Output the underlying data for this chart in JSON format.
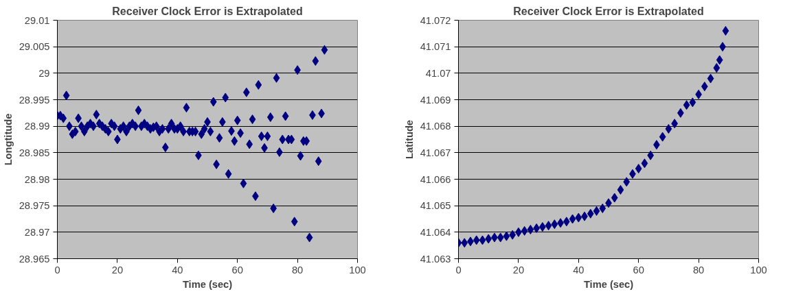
{
  "chart_data": [
    {
      "type": "scatter",
      "title": "Receiver Clock Error is Extrapolated",
      "xlabel": "Time (sec)",
      "ylabel": "Longtitude",
      "marker": "diamond",
      "grid": "y",
      "color": "#000080",
      "x": [
        0,
        1,
        2,
        3,
        4,
        5,
        6,
        7,
        8,
        9,
        10,
        11,
        12,
        13,
        14,
        15,
        16,
        17,
        18,
        19,
        20,
        21,
        22,
        23,
        24,
        25,
        26,
        27,
        28,
        29,
        30,
        31,
        32,
        33,
        34,
        35,
        36,
        37,
        38,
        39,
        40,
        41,
        42,
        43,
        44,
        45,
        46,
        47,
        48,
        49,
        50,
        51,
        52,
        53,
        54,
        55,
        56,
        57,
        58,
        59,
        60,
        61,
        62,
        63,
        64,
        65,
        66,
        67,
        68,
        69,
        70,
        71,
        72,
        73,
        74,
        75,
        76,
        77,
        78,
        79,
        80,
        81,
        82,
        83,
        84,
        85,
        86,
        87,
        88,
        89
      ],
      "values": [
        28.992,
        28.992,
        28.9915,
        28.9958,
        28.99,
        28.9885,
        28.989,
        28.9915,
        28.99,
        28.989,
        28.99,
        28.9905,
        28.99,
        28.9922,
        28.9905,
        28.99,
        28.9895,
        28.989,
        28.9905,
        28.99,
        28.9875,
        28.9895,
        28.99,
        28.989,
        28.99,
        28.9905,
        28.99,
        28.993,
        28.99,
        28.9905,
        28.99,
        28.9895,
        28.9898,
        28.99,
        28.989,
        28.9895,
        28.986,
        28.9895,
        28.9905,
        28.9895,
        28.9895,
        28.99,
        28.989,
        28.9935,
        28.989,
        28.989,
        28.989,
        28.9845,
        28.9885,
        28.9895,
        28.9908,
        28.989,
        28.9946,
        28.9828,
        28.9878,
        28.9908,
        28.9954,
        28.981,
        28.9891,
        28.9872,
        28.9911,
        28.9887,
        28.9792,
        28.9964,
        28.9866,
        28.9913,
        28.9768,
        28.9978,
        28.9881,
        28.9859,
        28.9881,
        28.9917,
        28.9745,
        28.9991,
        28.9851,
        28.9875,
        28.9919,
        28.9875,
        28.9875,
        28.972,
        29.0006,
        28.9844,
        28.9872,
        28.9872,
        28.969,
        28.9921,
        29.0023,
        28.9834,
        28.9924,
        29.0044
      ],
      "xlim": [
        0,
        100
      ],
      "xticks": [
        0,
        20,
        40,
        60,
        80,
        100
      ],
      "ylim": [
        28.965,
        29.01
      ],
      "yticks": [
        28.965,
        28.97,
        28.975,
        28.98,
        28.985,
        28.99,
        28.995,
        29,
        29.005,
        29.01
      ]
    },
    {
      "type": "scatter",
      "title": "Receiver Clock Error is Extrapolated",
      "xlabel": "Time (sec)",
      "ylabel": "Latitude",
      "marker": "diamond",
      "grid": "y",
      "color": "#000080",
      "x": [
        0,
        2,
        4,
        6,
        8,
        10,
        12,
        14,
        16,
        18,
        20,
        22,
        24,
        26,
        28,
        30,
        32,
        34,
        36,
        38,
        40,
        42,
        44,
        46,
        48,
        50,
        52,
        54,
        56,
        58,
        60,
        62,
        64,
        66,
        68,
        70,
        72,
        74,
        76,
        78,
        80,
        82,
        84,
        86,
        87,
        88,
        89
      ],
      "values": [
        41.0636,
        41.0636,
        41.06365,
        41.0637,
        41.0637,
        41.06375,
        41.0638,
        41.0638,
        41.06385,
        41.0639,
        41.064,
        41.06405,
        41.0641,
        41.06415,
        41.0642,
        41.06425,
        41.0643,
        41.06435,
        41.0644,
        41.0645,
        41.06455,
        41.0646,
        41.0647,
        41.0648,
        41.0649,
        41.0651,
        41.0653,
        41.0656,
        41.0659,
        41.0662,
        41.0664,
        41.0666,
        41.0669,
        41.0673,
        41.0676,
        41.0679,
        41.0681,
        41.0685,
        41.0688,
        41.0689,
        41.0692,
        41.0695,
        41.0698,
        41.0702,
        41.0705,
        41.071,
        41.0716
      ],
      "xlim": [
        0,
        100
      ],
      "xticks": [
        0,
        20,
        40,
        60,
        80,
        100
      ],
      "ylim": [
        41.063,
        41.072
      ],
      "yticks": [
        41.063,
        41.064,
        41.065,
        41.066,
        41.067,
        41.068,
        41.069,
        41.07,
        41.071,
        41.072
      ]
    }
  ]
}
